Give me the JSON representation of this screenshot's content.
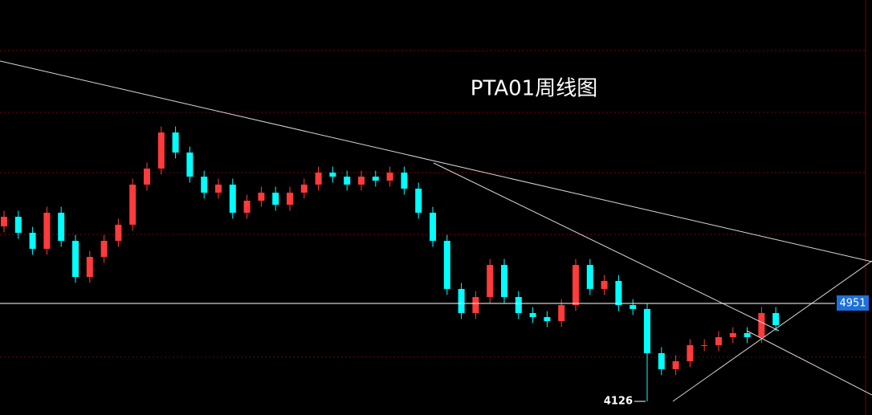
{
  "chart_data": {
    "type": "candlestick",
    "title": "PTA01周线图",
    "open": [
      5600,
      5681,
      5546,
      5411,
      5715,
      5478,
      5174,
      5343,
      5478,
      5614,
      5952,
      6087,
      6391,
      6222,
      6019,
      5884,
      5952,
      5715,
      5816,
      5884,
      5782,
      5884,
      5952,
      6053,
      6019,
      5952,
      6019,
      5985,
      6053,
      5918,
      5715,
      5478,
      5073,
      4870,
      5005,
      5275,
      5005,
      4870,
      4836,
      4802,
      4937,
      5275,
      5073,
      5140,
      4937,
      4904,
      4532,
      4397,
      4464,
      4599,
      4599,
      4667,
      4701,
      4667,
      4870
    ],
    "high": [
      5731,
      5731,
      5596,
      5765,
      5765,
      5528,
      5393,
      5528,
      5664,
      6002,
      6137,
      6441,
      6441,
      6272,
      6069,
      6002,
      6002,
      5866,
      5934,
      5934,
      5934,
      6002,
      6103,
      6103,
      6069,
      6069,
      6069,
      6103,
      6103,
      5968,
      5765,
      5528,
      5123,
      5055,
      5325,
      5325,
      5055,
      4920,
      4886,
      4987,
      5325,
      5325,
      5190,
      5190,
      4987,
      4954,
      4582,
      4514,
      4649,
      4649,
      4717,
      4751,
      4751,
      4920,
      4920
    ],
    "low": [
      5550,
      5496,
      5361,
      5361,
      5428,
      5124,
      5124,
      5293,
      5428,
      5564,
      5902,
      6037,
      6172,
      5969,
      5834,
      5834,
      5665,
      5665,
      5766,
      5732,
      5732,
      5834,
      5902,
      5969,
      5902,
      5902,
      5935,
      5935,
      5868,
      5665,
      5428,
      5023,
      4820,
      4820,
      4955,
      4955,
      4820,
      4786,
      4752,
      4752,
      4887,
      5023,
      5023,
      4887,
      4854,
      4126,
      4347,
      4347,
      4414,
      4549,
      4549,
      4617,
      4617,
      4617,
      4718
    ],
    "close": [
      5681,
      5546,
      5411,
      5715,
      5478,
      5174,
      5343,
      5478,
      5614,
      5952,
      6087,
      6391,
      6222,
      6019,
      5884,
      5952,
      5715,
      5816,
      5884,
      5782,
      5884,
      5952,
      6053,
      6019,
      5952,
      6019,
      5985,
      6053,
      5918,
      5715,
      5478,
      5073,
      4870,
      5005,
      5275,
      5005,
      4870,
      4836,
      4802,
      4937,
      5275,
      5073,
      5140,
      4937,
      4904,
      4532,
      4397,
      4464,
      4599,
      4599,
      4667,
      4701,
      4667,
      4870,
      4768
    ],
    "up_color": "#ff3b3b",
    "down_color": "#00ffff",
    "ylim": [
      4011,
      7507
    ],
    "price_line": 4951,
    "low_label": 4126
  }
}
